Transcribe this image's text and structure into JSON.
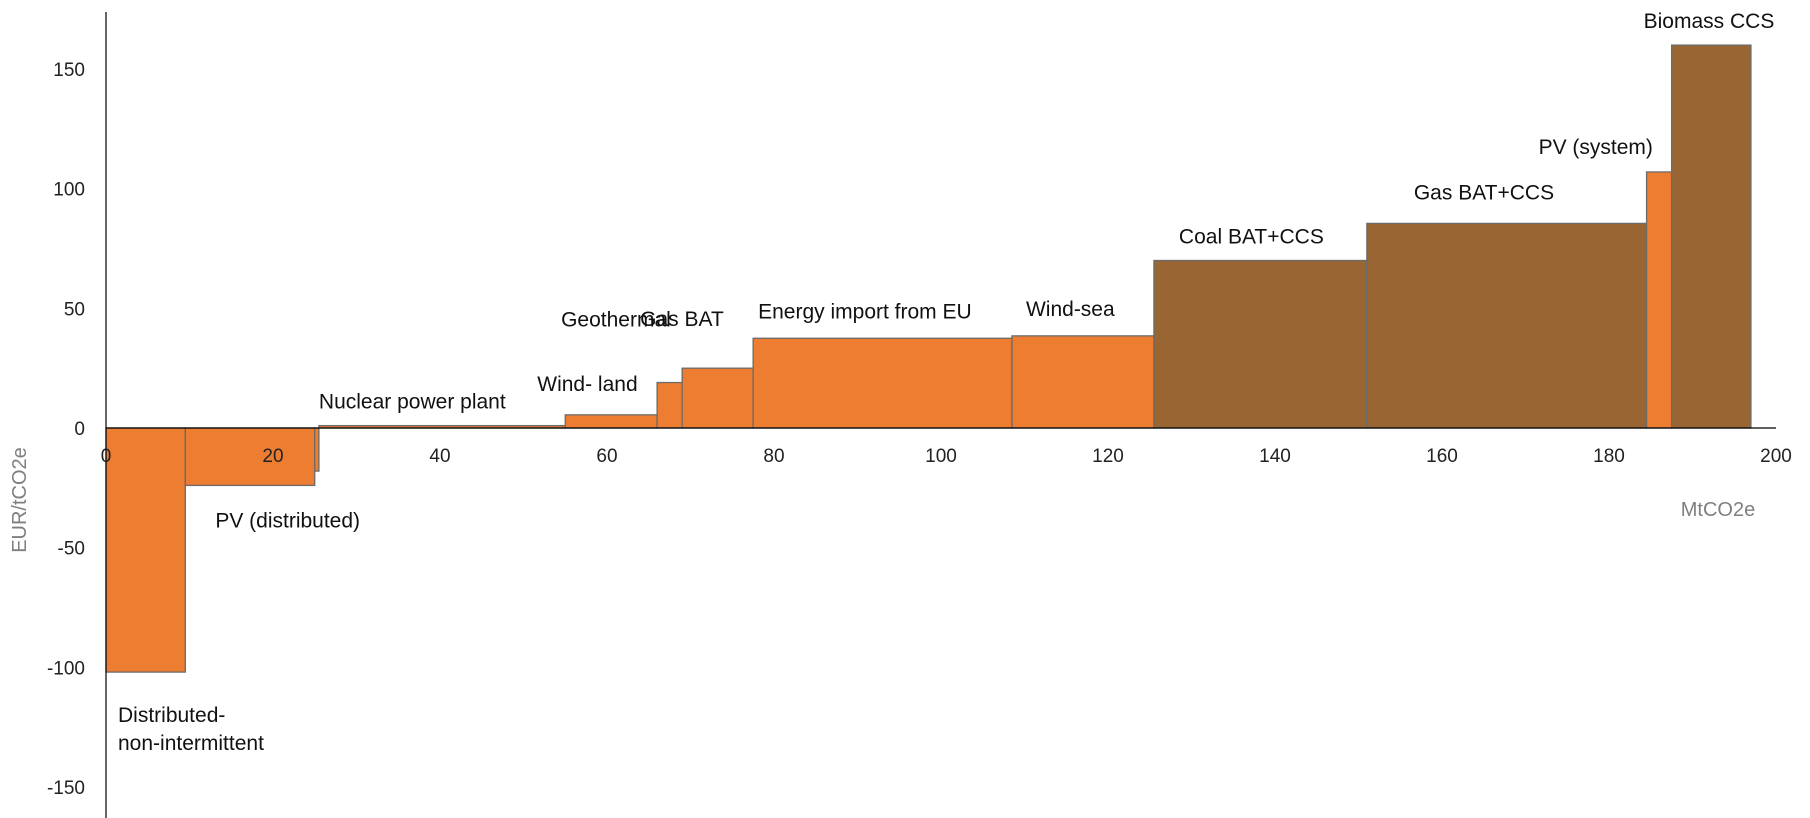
{
  "chart_data": {
    "type": "bar",
    "subtype": "marginal-abatement-cost-curve",
    "title": "",
    "xlabel": "MtCO2e",
    "ylabel": "EUR/tCO2e",
    "xlim": [
      0,
      200
    ],
    "ylim": [
      -165,
      175
    ],
    "xticks": [
      0,
      20,
      40,
      60,
      80,
      100,
      120,
      140,
      160,
      180,
      200
    ],
    "yticks": [
      -150,
      -100,
      -50,
      0,
      50,
      100,
      150
    ],
    "grid": false,
    "legend": "none",
    "colors": {
      "orange": "#ED7D31",
      "brown": "#996633",
      "outline": "#6b6b6b",
      "axis": "#000000"
    },
    "series": [
      {
        "name": "Distributed-\nnon-intermittent",
        "label_lines": [
          "Distributed-",
          "non-intermittent"
        ],
        "x_start": 0,
        "x_end": 9.5,
        "value": -102,
        "color": "orange"
      },
      {
        "name": "PV (distributed)",
        "label_lines": [
          "PV (distributed)"
        ],
        "x_start": 9.5,
        "x_end": 25,
        "value": -24,
        "color": "orange"
      },
      {
        "name": "",
        "label_lines": [],
        "x_start": 25,
        "x_end": 25.5,
        "value": -18,
        "color": "orange"
      },
      {
        "name": "Nuclear power plant",
        "label_lines": [
          "Nuclear power plant"
        ],
        "x_start": 25.5,
        "x_end": 55,
        "value": 1,
        "color": "orange"
      },
      {
        "name": "Wind- land",
        "label_lines": [
          "Wind- land"
        ],
        "x_start": 55,
        "x_end": 66,
        "value": 5.5,
        "color": "orange"
      },
      {
        "name": "Geothermal",
        "label_lines": [
          "Geothermal"
        ],
        "x_start": 66,
        "x_end": 69,
        "value": 19,
        "color": "orange"
      },
      {
        "name": "Gas BAT",
        "label_lines": [
          "Gas BAT"
        ],
        "x_start": 69,
        "x_end": 77.5,
        "value": 25,
        "color": "orange"
      },
      {
        "name": "Energy import from EU",
        "label_lines": [
          "Energy import from EU"
        ],
        "x_start": 77.5,
        "x_end": 108.5,
        "value": 37.5,
        "color": "orange"
      },
      {
        "name": "Wind-sea",
        "label_lines": [
          "Wind-sea"
        ],
        "x_start": 108.5,
        "x_end": 125.5,
        "value": 38.5,
        "color": "orange"
      },
      {
        "name": "Coal BAT+CCS",
        "label_lines": [
          "Coal BAT+CCS"
        ],
        "x_start": 125.5,
        "x_end": 151,
        "value": 70,
        "color": "brown"
      },
      {
        "name": "Gas BAT+CCS",
        "label_lines": [
          "Gas BAT+CCS"
        ],
        "x_start": 151,
        "x_end": 184.5,
        "value": 85.5,
        "color": "brown"
      },
      {
        "name": "PV (system)",
        "label_lines": [
          "PV (system)"
        ],
        "x_start": 184.5,
        "x_end": 187.5,
        "value": 107,
        "color": "orange"
      },
      {
        "name": "Biomass CCS",
        "label_lines": [
          "Biomass CCS"
        ],
        "x_start": 187.5,
        "x_end": 197,
        "value": 160,
        "color": "brown"
      }
    ]
  }
}
